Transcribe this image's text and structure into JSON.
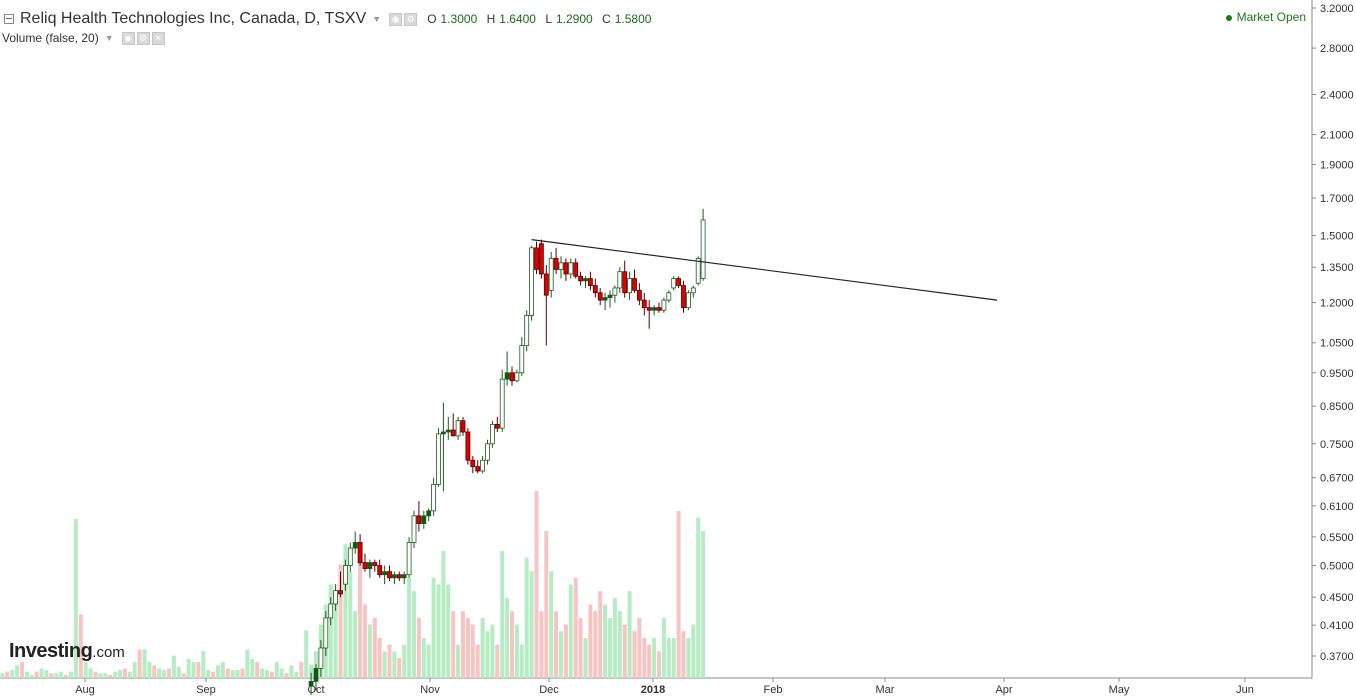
{
  "header": {
    "title": "Reliq Health Technologies Inc, Canada, D, TSXV",
    "o_label": "O",
    "o_value": "1.3000",
    "h_label": "H",
    "h_value": "1.6400",
    "l_label": "L",
    "l_value": "1.2900",
    "c_label": "C",
    "c_value": "1.5800"
  },
  "volume_indicator": {
    "label": "Volume (false, 20)"
  },
  "status": {
    "market": "Market Open"
  },
  "logo": {
    "brand": "Investing",
    "suffix": ".com"
  },
  "colors": {
    "up_body": "#ffffff",
    "up_border": "#1e5a1e",
    "up_filled": "#0d5c0d",
    "down_body": "#e00000",
    "down_border": "#5a0000",
    "vol_up": "#b5ecc3",
    "vol_down": "#f7c3c3",
    "axis": "#888888",
    "trendline": "#222222"
  },
  "chart_data": {
    "type": "candlestick",
    "title": "Reliq Health Technologies Inc, Canada, D, TSXV",
    "y_scale": "log",
    "y_ticks": [
      "3.2000",
      "2.8000",
      "2.4000",
      "2.1000",
      "1.9000",
      "1.7000",
      "1.5000",
      "1.3500",
      "1.2000",
      "1.0500",
      "0.9500",
      "0.8500",
      "0.7500",
      "0.6700",
      "0.6100",
      "0.5500",
      "0.5000",
      "0.4500",
      "0.4100",
      "0.3700"
    ],
    "x_ticks": [
      {
        "label": "Aug",
        "bold": false
      },
      {
        "label": "Sep",
        "bold": false
      },
      {
        "label": "Oct",
        "bold": false
      },
      {
        "label": "Nov",
        "bold": false
      },
      {
        "label": "Dec",
        "bold": false
      },
      {
        "label": "2018",
        "bold": true
      },
      {
        "label": "Feb",
        "bold": false
      },
      {
        "label": "Mar",
        "bold": false
      },
      {
        "label": "Apr",
        "bold": false
      },
      {
        "label": "May",
        "bold": false
      },
      {
        "label": "Jun",
        "bold": false
      }
    ],
    "candles": [
      {
        "o": 0.335,
        "h": 0.35,
        "l": 0.325,
        "c": 0.34,
        "v": 2
      },
      {
        "o": 0.34,
        "h": 0.36,
        "l": 0.33,
        "c": 0.355,
        "v": 4
      },
      {
        "o": 0.355,
        "h": 0.39,
        "l": 0.345,
        "c": 0.38,
        "v": 8
      },
      {
        "o": 0.38,
        "h": 0.43,
        "l": 0.37,
        "c": 0.42,
        "v": 11
      },
      {
        "o": 0.42,
        "h": 0.45,
        "l": 0.41,
        "c": 0.44,
        "v": 14
      },
      {
        "o": 0.44,
        "h": 0.47,
        "l": 0.43,
        "c": 0.46,
        "v": 11
      },
      {
        "o": 0.46,
        "h": 0.49,
        "l": 0.45,
        "c": 0.455,
        "v": 17
      },
      {
        "o": 0.47,
        "h": 0.51,
        "l": 0.46,
        "c": 0.5,
        "v": 20
      },
      {
        "o": 0.5,
        "h": 0.54,
        "l": 0.49,
        "c": 0.53,
        "v": 16
      },
      {
        "o": 0.53,
        "h": 0.56,
        "l": 0.52,
        "c": 0.54,
        "v": 10
      },
      {
        "o": 0.54,
        "h": 0.555,
        "l": 0.5,
        "c": 0.505,
        "v": 19
      },
      {
        "o": 0.505,
        "h": 0.52,
        "l": 0.49,
        "c": 0.495,
        "v": 11
      },
      {
        "o": 0.495,
        "h": 0.51,
        "l": 0.48,
        "c": 0.505,
        "v": 8
      },
      {
        "o": 0.505,
        "h": 0.51,
        "l": 0.49,
        "c": 0.5,
        "v": 9
      },
      {
        "o": 0.5,
        "h": 0.51,
        "l": 0.48,
        "c": 0.485,
        "v": 6
      },
      {
        "o": 0.485,
        "h": 0.5,
        "l": 0.47,
        "c": 0.49,
        "v": 4
      },
      {
        "o": 0.49,
        "h": 0.5,
        "l": 0.475,
        "c": 0.48,
        "v": 5
      },
      {
        "o": 0.48,
        "h": 0.49,
        "l": 0.47,
        "c": 0.485,
        "v": 4
      },
      {
        "o": 0.485,
        "h": 0.49,
        "l": 0.475,
        "c": 0.48,
        "v": 3
      },
      {
        "o": 0.48,
        "h": 0.49,
        "l": 0.47,
        "c": 0.485,
        "v": 5
      },
      {
        "o": 0.485,
        "h": 0.55,
        "l": 0.48,
        "c": 0.54,
        "v": 15
      },
      {
        "o": 0.54,
        "h": 0.6,
        "l": 0.53,
        "c": 0.59,
        "v": 13
      },
      {
        "o": 0.59,
        "h": 0.62,
        "l": 0.56,
        "c": 0.575,
        "v": 9
      },
      {
        "o": 0.575,
        "h": 0.6,
        "l": 0.565,
        "c": 0.59,
        "v": 6
      },
      {
        "o": 0.59,
        "h": 0.605,
        "l": 0.58,
        "c": 0.6,
        "v": 5
      },
      {
        "o": 0.6,
        "h": 0.67,
        "l": 0.59,
        "c": 0.655,
        "v": 15
      },
      {
        "o": 0.655,
        "h": 0.79,
        "l": 0.65,
        "c": 0.775,
        "v": 14
      },
      {
        "o": 0.775,
        "h": 0.86,
        "l": 0.64,
        "c": 0.78,
        "v": 19
      },
      {
        "o": 0.78,
        "h": 0.82,
        "l": 0.76,
        "c": 0.785,
        "v": 14
      },
      {
        "o": 0.785,
        "h": 0.83,
        "l": 0.77,
        "c": 0.77,
        "v": 10
      },
      {
        "o": 0.77,
        "h": 0.82,
        "l": 0.76,
        "c": 0.81,
        "v": 5
      },
      {
        "o": 0.81,
        "h": 0.82,
        "l": 0.77,
        "c": 0.78,
        "v": 10
      },
      {
        "o": 0.78,
        "h": 0.79,
        "l": 0.7,
        "c": 0.71,
        "v": 9
      },
      {
        "o": 0.71,
        "h": 0.72,
        "l": 0.68,
        "c": 0.695,
        "v": 8
      },
      {
        "o": 0.695,
        "h": 0.71,
        "l": 0.68,
        "c": 0.685,
        "v": 5
      },
      {
        "o": 0.685,
        "h": 0.72,
        "l": 0.68,
        "c": 0.71,
        "v": 9
      },
      {
        "o": 0.71,
        "h": 0.76,
        "l": 0.7,
        "c": 0.75,
        "v": 7
      },
      {
        "o": 0.75,
        "h": 0.81,
        "l": 0.74,
        "c": 0.8,
        "v": 8
      },
      {
        "o": 0.8,
        "h": 0.82,
        "l": 0.78,
        "c": 0.79,
        "v": 5
      },
      {
        "o": 0.79,
        "h": 0.96,
        "l": 0.78,
        "c": 0.93,
        "v": 19
      },
      {
        "o": 0.93,
        "h": 1.02,
        "l": 0.91,
        "c": 0.95,
        "v": 12
      },
      {
        "o": 0.95,
        "h": 0.97,
        "l": 0.91,
        "c": 0.925,
        "v": 10
      },
      {
        "o": 0.925,
        "h": 0.96,
        "l": 0.92,
        "c": 0.95,
        "v": 8
      },
      {
        "o": 0.95,
        "h": 1.07,
        "l": 0.94,
        "c": 1.04,
        "v": 5
      },
      {
        "o": 1.04,
        "h": 1.17,
        "l": 1.02,
        "c": 1.15,
        "v": 18
      },
      {
        "o": 1.15,
        "h": 1.45,
        "l": 1.13,
        "c": 1.44,
        "v": 16
      },
      {
        "o": 1.44,
        "h": 1.47,
        "l": 1.32,
        "c": 1.34,
        "v": 28
      },
      {
        "o": 1.46,
        "h": 1.48,
        "l": 1.3,
        "c": 1.32,
        "v": 10
      },
      {
        "o": 1.32,
        "h": 1.36,
        "l": 1.04,
        "c": 1.23,
        "v": 22
      },
      {
        "o": 1.25,
        "h": 1.42,
        "l": 1.22,
        "c": 1.39,
        "v": 16
      },
      {
        "o": 1.39,
        "h": 1.44,
        "l": 1.32,
        "c": 1.34,
        "v": 10
      },
      {
        "o": 1.34,
        "h": 1.4,
        "l": 1.3,
        "c": 1.37,
        "v": 7
      },
      {
        "o": 1.37,
        "h": 1.39,
        "l": 1.29,
        "c": 1.32,
        "v": 8
      },
      {
        "o": 1.32,
        "h": 1.39,
        "l": 1.3,
        "c": 1.37,
        "v": 14
      },
      {
        "o": 1.37,
        "h": 1.39,
        "l": 1.3,
        "c": 1.31,
        "v": 15
      },
      {
        "o": 1.31,
        "h": 1.33,
        "l": 1.27,
        "c": 1.29,
        "v": 9
      },
      {
        "o": 1.29,
        "h": 1.31,
        "l": 1.26,
        "c": 1.3,
        "v": 6
      },
      {
        "o": 1.3,
        "h": 1.33,
        "l": 1.25,
        "c": 1.27,
        "v": 11
      },
      {
        "o": 1.27,
        "h": 1.3,
        "l": 1.22,
        "c": 1.24,
        "v": 10
      },
      {
        "o": 1.24,
        "h": 1.26,
        "l": 1.19,
        "c": 1.21,
        "v": 13
      },
      {
        "o": 1.21,
        "h": 1.24,
        "l": 1.17,
        "c": 1.22,
        "v": 11
      },
      {
        "o": 1.22,
        "h": 1.25,
        "l": 1.18,
        "c": 1.23,
        "v": 9
      },
      {
        "o": 1.23,
        "h": 1.27,
        "l": 1.2,
        "c": 1.26,
        "v": 12
      },
      {
        "o": 1.26,
        "h": 1.35,
        "l": 1.24,
        "c": 1.33,
        "v": 10
      },
      {
        "o": 1.33,
        "h": 1.38,
        "l": 1.22,
        "c": 1.24,
        "v": 8
      },
      {
        "o": 1.24,
        "h": 1.33,
        "l": 1.21,
        "c": 1.3,
        "v": 13
      },
      {
        "o": 1.3,
        "h": 1.34,
        "l": 1.24,
        "c": 1.25,
        "v": 7
      },
      {
        "o": 1.25,
        "h": 1.28,
        "l": 1.19,
        "c": 1.21,
        "v": 9
      },
      {
        "o": 1.21,
        "h": 1.24,
        "l": 1.15,
        "c": 1.18,
        "v": 6
      },
      {
        "o": 1.18,
        "h": 1.21,
        "l": 1.1,
        "c": 1.17,
        "v": 5
      },
      {
        "o": 1.17,
        "h": 1.19,
        "l": 1.15,
        "c": 1.18,
        "v": 6
      },
      {
        "o": 1.18,
        "h": 1.2,
        "l": 1.16,
        "c": 1.17,
        "v": 4
      },
      {
        "o": 1.17,
        "h": 1.22,
        "l": 1.16,
        "c": 1.21,
        "v": 9
      },
      {
        "o": 1.21,
        "h": 1.25,
        "l": 1.2,
        "c": 1.24,
        "v": 6
      },
      {
        "o": 1.26,
        "h": 1.31,
        "l": 1.25,
        "c": 1.3,
        "v": 6
      },
      {
        "o": 1.3,
        "h": 1.31,
        "l": 1.26,
        "c": 1.27,
        "v": 25
      },
      {
        "o": 1.27,
        "h": 1.29,
        "l": 1.16,
        "c": 1.18,
        "v": 7
      },
      {
        "o": 1.18,
        "h": 1.25,
        "l": 1.17,
        "c": 1.24,
        "v": 6
      },
      {
        "o": 1.24,
        "h": 1.27,
        "l": 1.22,
        "c": 1.26,
        "v": 8
      },
      {
        "o": 1.28,
        "h": 1.4,
        "l": 1.27,
        "c": 1.39,
        "v": 24
      },
      {
        "o": 1.3,
        "h": 1.64,
        "l": 1.29,
        "c": 1.58,
        "v": 22
      }
    ],
    "trendline": [
      {
        "i": 46,
        "price": 1.48
      },
      {
        "i": 98,
        "price": 1.21
      }
    ],
    "volume_ylim": [
      0,
      110
    ]
  }
}
